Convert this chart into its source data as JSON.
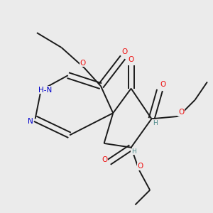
{
  "bg_color": "#ebebeb",
  "bond_color": "#1a1a1a",
  "O_color": "#ee1111",
  "N_color": "#0000cc",
  "H_color": "#4a8888",
  "lw": 1.4,
  "fs": 7.5,
  "fss": 6.5,
  "xlim": [
    25,
    285
  ],
  "ylim": [
    20,
    280
  ]
}
